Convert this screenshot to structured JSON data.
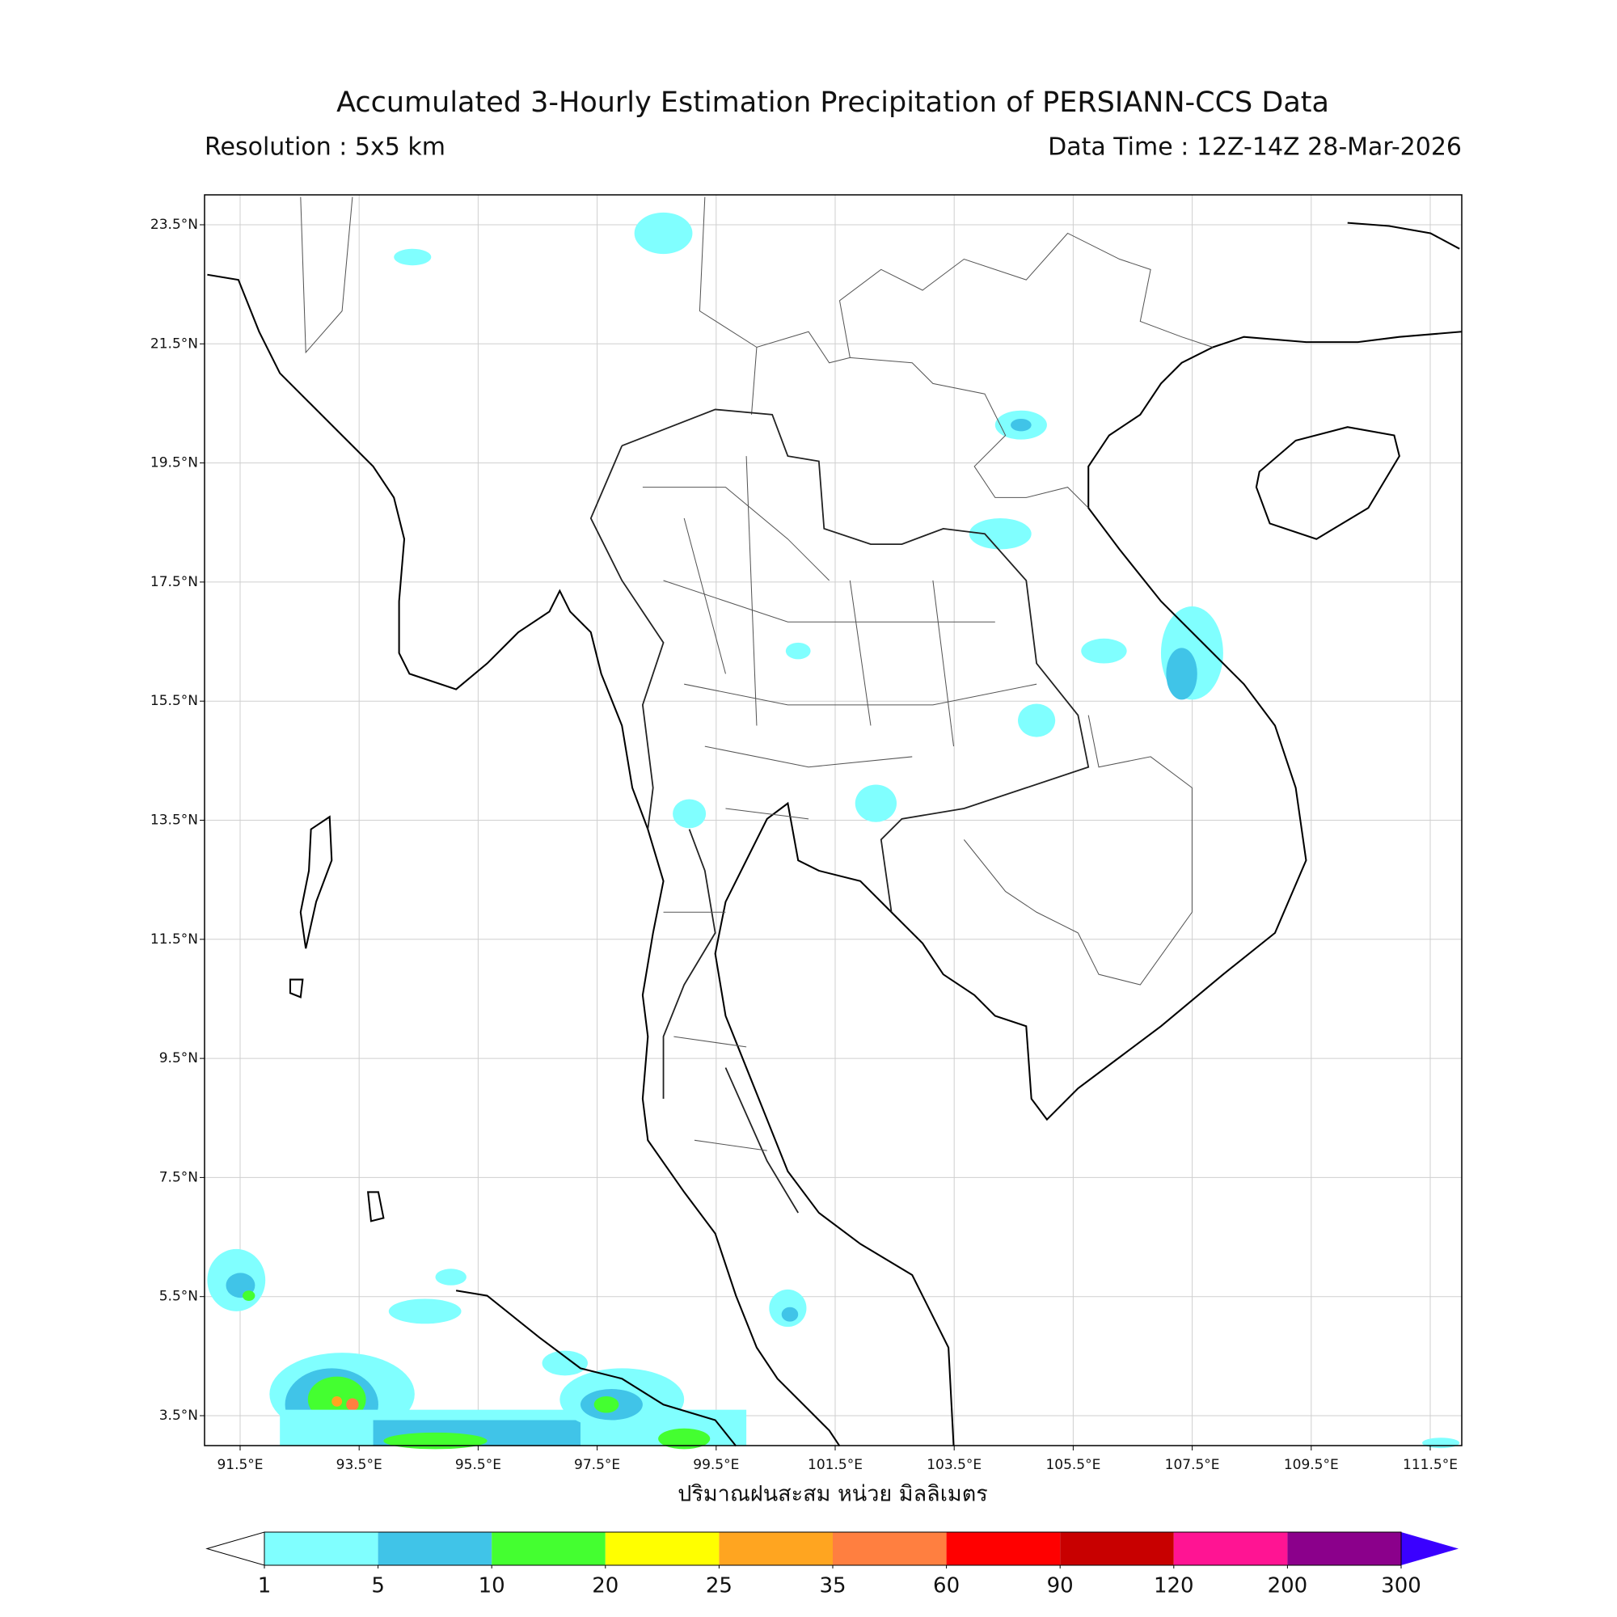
{
  "header": {
    "title": "Accumulated 3-Hourly Estimation Precipitation of PERSIANN-CCS Data",
    "resolution": "Resolution : 5x5 km",
    "data_time": "Data Time : 12Z-14Z 28-Mar-2026"
  },
  "map": {
    "lat_ticks": [
      {
        "value": 23.5,
        "label": "23.5°N"
      },
      {
        "value": 21.5,
        "label": "21.5°N"
      },
      {
        "value": 19.5,
        "label": "19.5°N"
      },
      {
        "value": 17.5,
        "label": "17.5°N"
      },
      {
        "value": 15.5,
        "label": "15.5°N"
      },
      {
        "value": 13.5,
        "label": "13.5°N"
      },
      {
        "value": 11.5,
        "label": "11.5°N"
      },
      {
        "value": 9.5,
        "label": "9.5°N"
      },
      {
        "value": 7.5,
        "label": "7.5°N"
      },
      {
        "value": 5.5,
        "label": "5.5°N"
      },
      {
        "value": 3.5,
        "label": "3.5°N"
      }
    ],
    "lon_ticks": [
      {
        "value": 91.5,
        "label": "91.5°E"
      },
      {
        "value": 93.5,
        "label": "93.5°E"
      },
      {
        "value": 95.5,
        "label": "95.5°E"
      },
      {
        "value": 97.5,
        "label": "97.5°E"
      },
      {
        "value": 99.5,
        "label": "99.5°E"
      },
      {
        "value": 101.5,
        "label": "101.5°E"
      },
      {
        "value": 103.5,
        "label": "103.5°E"
      },
      {
        "value": 105.5,
        "label": "105.5°E"
      },
      {
        "value": 107.5,
        "label": "107.5°E"
      },
      {
        "value": 109.5,
        "label": "109.5°E"
      },
      {
        "value": 111.5,
        "label": "111.5°E"
      }
    ],
    "grid": true,
    "xlabel": "ปริมาณฝนสะสม หน่วย มิลลิเมตร"
  },
  "colorbar": {
    "ticks": [
      1,
      5,
      10,
      20,
      25,
      35,
      60,
      90,
      120,
      200,
      300
    ],
    "colors": [
      "#80ffff",
      "#40c4e8",
      "#44ff30",
      "#ffff00",
      "#ffa520",
      "#ff7f40",
      "#ff0000",
      "#c80000",
      "#ff1493",
      "#8b008b"
    ],
    "under_color": "#ffffff",
    "over_color": "#3a00ff"
  }
}
